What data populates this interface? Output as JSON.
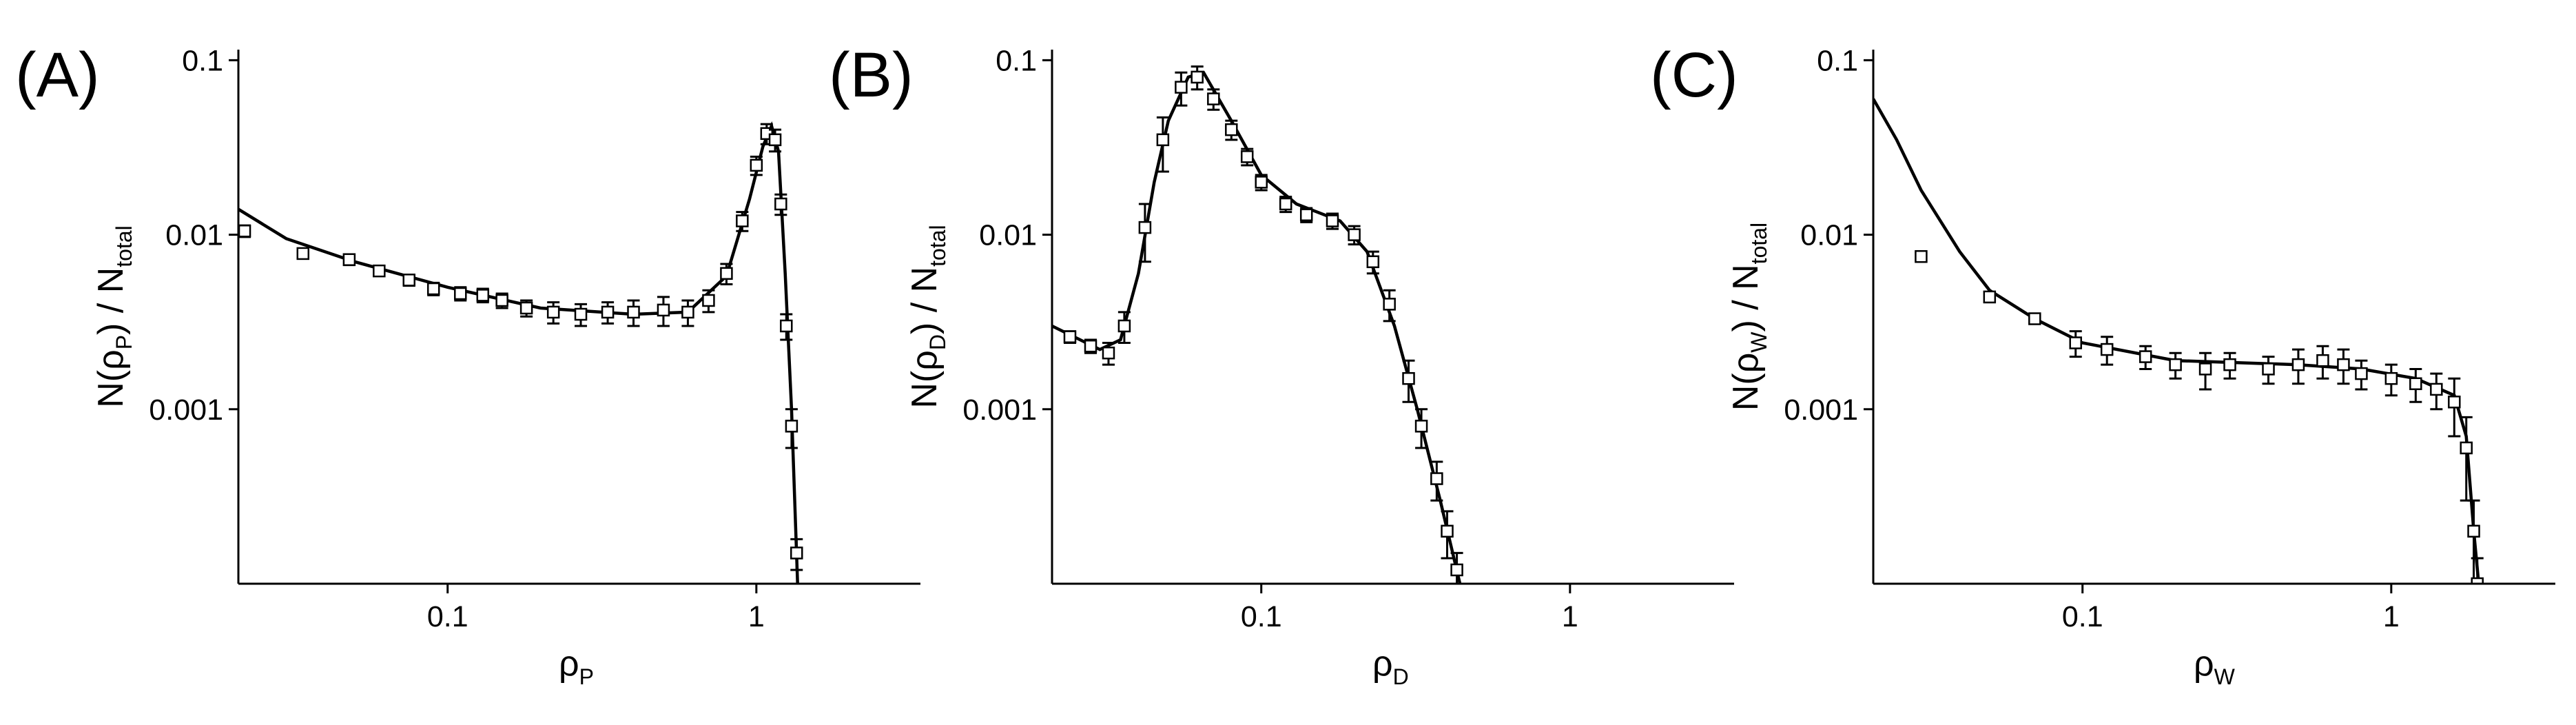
{
  "chart_data": [
    {
      "type": "scatter",
      "panel_label": "(A)",
      "xlabel": [
        {
          "text": "ρ"
        },
        {
          "text": "P",
          "sub": true
        }
      ],
      "ylabel": [
        {
          "text": "N(ρ"
        },
        {
          "text": "P",
          "sub": true
        },
        {
          "text": ") / N"
        },
        {
          "text": "total",
          "sub": true
        }
      ],
      "xscale": "log",
      "yscale": "log",
      "xlim": [
        0.021,
        3.4
      ],
      "ylim": [
        0.0001,
        0.115
      ],
      "xticks": [
        0.1,
        1
      ],
      "yticks": [
        0.1,
        0.01,
        0.001
      ],
      "color": "#000000",
      "x": [
        0.022,
        0.034,
        0.048,
        0.06,
        0.075,
        0.09,
        0.11,
        0.13,
        0.15,
        0.18,
        0.22,
        0.27,
        0.33,
        0.4,
        0.5,
        0.6,
        0.7,
        0.8,
        0.9,
        1.0,
        1.08,
        1.15,
        1.2,
        1.25,
        1.3,
        1.35
      ],
      "values": [
        0.0105,
        0.0078,
        0.0072,
        0.0062,
        0.0055,
        0.0049,
        0.0046,
        0.0045,
        0.0042,
        0.0038,
        0.0036,
        0.0035,
        0.0036,
        0.0036,
        0.0037,
        0.0036,
        0.0042,
        0.006,
        0.012,
        0.025,
        0.038,
        0.035,
        0.015,
        0.003,
        0.0008,
        0.00015
      ],
      "errors": [
        0.0008,
        0.0005,
        0.0005,
        0.0004,
        0.0004,
        0.0004,
        0.0004,
        0.0004,
        0.0004,
        0.0004,
        0.0005,
        0.0005,
        0.0005,
        0.0006,
        0.0007,
        0.0006,
        0.0006,
        0.0008,
        0.0015,
        0.003,
        0.005,
        0.005,
        0.002,
        0.0005,
        0.0002,
        3e-05
      ],
      "curve": {
        "x": [
          0.021,
          0.03,
          0.05,
          0.1,
          0.2,
          0.4,
          0.6,
          0.8,
          0.95,
          1.05,
          1.12,
          1.18,
          1.24,
          1.3,
          1.36
        ],
        "values": [
          0.014,
          0.0095,
          0.007,
          0.005,
          0.0038,
          0.0035,
          0.0036,
          0.0058,
          0.016,
          0.032,
          0.042,
          0.03,
          0.006,
          0.001,
          0.0001
        ]
      }
    },
    {
      "type": "scatter",
      "panel_label": "(B)",
      "xlabel": [
        {
          "text": "ρ"
        },
        {
          "text": "D",
          "sub": true
        }
      ],
      "ylabel": [
        {
          "text": "N(ρ"
        },
        {
          "text": "D",
          "sub": true
        },
        {
          "text": ") / N"
        },
        {
          "text": "total",
          "sub": true
        }
      ],
      "xscale": "log",
      "yscale": "log",
      "xlim": [
        0.021,
        3.4
      ],
      "ylim": [
        0.0001,
        0.115
      ],
      "xticks": [
        0.1,
        1
      ],
      "yticks": [
        0.1,
        0.01,
        0.001
      ],
      "color": "#000000",
      "x": [
        0.024,
        0.028,
        0.032,
        0.036,
        0.042,
        0.048,
        0.055,
        0.062,
        0.07,
        0.08,
        0.09,
        0.1,
        0.12,
        0.14,
        0.17,
        0.2,
        0.23,
        0.26,
        0.3,
        0.33,
        0.37,
        0.4,
        0.43
      ],
      "values": [
        0.0026,
        0.0023,
        0.0021,
        0.003,
        0.011,
        0.035,
        0.07,
        0.08,
        0.06,
        0.04,
        0.028,
        0.02,
        0.015,
        0.013,
        0.012,
        0.01,
        0.007,
        0.004,
        0.0015,
        0.0008,
        0.0004,
        0.0002,
        0.00012
      ],
      "errors": [
        0.0002,
        0.0002,
        0.0003,
        0.0006,
        0.004,
        0.012,
        0.015,
        0.012,
        0.008,
        0.005,
        0.003,
        0.002,
        0.0015,
        0.0012,
        0.0012,
        0.0012,
        0.001,
        0.0008,
        0.0004,
        0.0002,
        0.0001,
        6e-05,
        3e-05
      ],
      "curve": {
        "x": [
          0.021,
          0.03,
          0.035,
          0.04,
          0.045,
          0.05,
          0.058,
          0.065,
          0.08,
          0.1,
          0.13,
          0.18,
          0.22,
          0.27,
          0.32,
          0.38,
          0.44
        ],
        "values": [
          0.003,
          0.0022,
          0.0025,
          0.006,
          0.02,
          0.045,
          0.08,
          0.085,
          0.045,
          0.022,
          0.015,
          0.012,
          0.008,
          0.003,
          0.001,
          0.0003,
          0.0001
        ]
      }
    },
    {
      "type": "scatter",
      "panel_label": "(C)",
      "xlabel": [
        {
          "text": "ρ"
        },
        {
          "text": "W",
          "sub": true
        }
      ],
      "ylabel": [
        {
          "text": "N(ρ"
        },
        {
          "text": "W",
          "sub": true
        },
        {
          "text": ") / N"
        },
        {
          "text": "total",
          "sub": true
        }
      ],
      "xscale": "log",
      "yscale": "log",
      "xlim": [
        0.021,
        3.4
      ],
      "ylim": [
        0.0001,
        0.115
      ],
      "xticks": [
        0.1,
        1
      ],
      "yticks": [
        0.1,
        0.01,
        0.001
      ],
      "color": "#000000",
      "x": [
        0.03,
        0.05,
        0.07,
        0.095,
        0.12,
        0.16,
        0.2,
        0.25,
        0.3,
        0.4,
        0.5,
        0.6,
        0.7,
        0.8,
        1.0,
        1.2,
        1.4,
        1.6,
        1.75,
        1.85,
        1.9
      ],
      "values": [
        0.0075,
        0.0044,
        0.0033,
        0.0024,
        0.0022,
        0.002,
        0.0018,
        0.0017,
        0.0018,
        0.0017,
        0.0018,
        0.0019,
        0.0018,
        0.0016,
        0.0015,
        0.0014,
        0.0013,
        0.0011,
        0.0006,
        0.0002,
        0.0001
      ],
      "errors": [
        0.0004,
        0.0003,
        0.0002,
        0.0004,
        0.0004,
        0.0003,
        0.0003,
        0.0004,
        0.0003,
        0.0003,
        0.0004,
        0.0004,
        0.0004,
        0.0003,
        0.0003,
        0.0003,
        0.0003,
        0.0004,
        0.0003,
        0.0001,
        4e-05
      ],
      "curve": {
        "x": [
          0.021,
          0.025,
          0.03,
          0.04,
          0.05,
          0.07,
          0.1,
          0.2,
          0.5,
          0.8,
          1.2,
          1.6,
          1.75,
          1.85,
          1.92
        ],
        "values": [
          0.06,
          0.035,
          0.018,
          0.008,
          0.0048,
          0.0033,
          0.0024,
          0.0019,
          0.0018,
          0.0017,
          0.0015,
          0.0012,
          0.0007,
          0.0002,
          0.0001
        ]
      }
    }
  ]
}
